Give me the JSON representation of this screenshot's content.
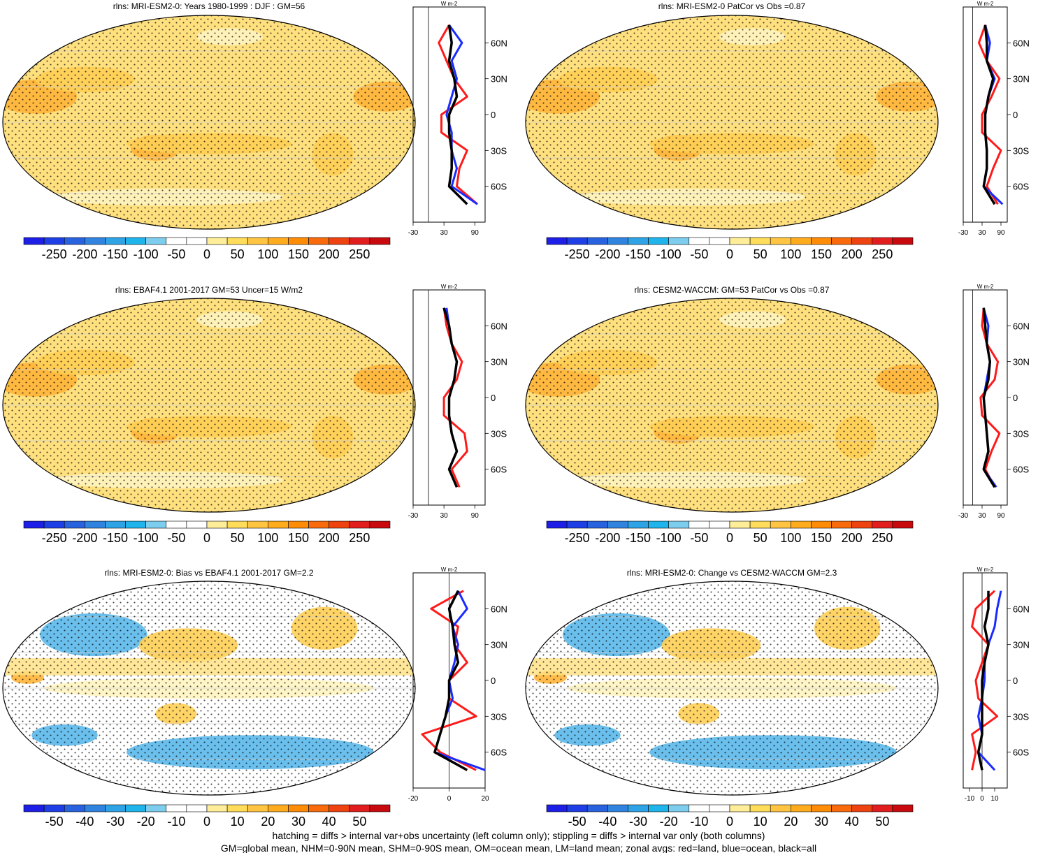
{
  "colors": {
    "full": [
      "#1d1ee6",
      "#1f3fe6",
      "#2862df",
      "#3084e0",
      "#2ea4e6",
      "#1fb4ec",
      "#7dcdee",
      "#ffffff",
      "#ffffff",
      "#ffee99",
      "#ffdc5a",
      "#ffc542",
      "#ffab1e",
      "#ff8c06",
      "#f86a0c",
      "#ee4210",
      "#e21d1d",
      "#c8090e"
    ],
    "ocean": "#ffe07f",
    "land": "#ffcf55",
    "warm": "#ffb53a",
    "cool": "#5ab8ea",
    "pale": "#fff4c0",
    "line_land": "#ff1a1a",
    "line_ocean": "#1a2bff",
    "line_all": "#000000"
  },
  "panels": [
    {
      "title": "rlns: MRI-ESM2-0: Years 1980-1999 : DJF : GM=56",
      "colorbar_labels": [
        "-250",
        "-200",
        "-150",
        "-100",
        "-50",
        "0",
        "50",
        "100",
        "150",
        "200",
        "250"
      ],
      "zonal_xticks": [
        "-30",
        "30",
        "90"
      ],
      "zonal_unit": "W m-2",
      "kind": "abs"
    },
    {
      "title": "rlns: MRI-ESM2-0 PatCor vs Obs =0.87",
      "colorbar_labels": [
        "-250",
        "-200",
        "-150",
        "-100",
        "-50",
        "0",
        "50",
        "100",
        "150",
        "200",
        "250"
      ],
      "zonal_xticks": [
        "-30",
        "30",
        "90"
      ],
      "zonal_unit": "W m-2",
      "kind": "abs"
    },
    {
      "title": "rlns: EBAF4.1 2001-2017 GM=53 Uncer=15 W/m2",
      "colorbar_labels": [
        "-250",
        "-200",
        "-150",
        "-100",
        "-50",
        "0",
        "50",
        "100",
        "150",
        "200",
        "250"
      ],
      "zonal_xticks": [
        "-30",
        "30",
        "90"
      ],
      "zonal_unit": "W m-2",
      "kind": "abs"
    },
    {
      "title": "rlns: CESM2-WACCM: GM=53 PatCor vs Obs =0.87",
      "colorbar_labels": [
        "-250",
        "-200",
        "-150",
        "-100",
        "-50",
        "0",
        "50",
        "100",
        "150",
        "200",
        "250"
      ],
      "zonal_xticks": [
        "-30",
        "30",
        "90"
      ],
      "zonal_unit": "W m-2",
      "kind": "abs"
    },
    {
      "title": "rlns: MRI-ESM2-0: Bias vs EBAF4.1 2001-2017 GM=2.2",
      "colorbar_labels": [
        "-50",
        "-40",
        "-30",
        "-20",
        "-10",
        "0",
        "10",
        "20",
        "30",
        "40",
        "50"
      ],
      "zonal_xticks": [
        "-20",
        "0",
        "20"
      ],
      "zonal_unit": "W m-2",
      "kind": "diff"
    },
    {
      "title": "rlns: MRI-ESM2-0: Change vs CESM2-WACCM GM=2.3",
      "colorbar_labels": [
        "-50",
        "-40",
        "-30",
        "-20",
        "-10",
        "0",
        "10",
        "20",
        "30",
        "40",
        "50"
      ],
      "zonal_xticks": [
        "-10",
        "0",
        "10"
      ],
      "zonal_unit": "W m-2",
      "kind": "diff"
    }
  ],
  "lat_labels": [
    "60N",
    "30N",
    "0",
    "30S",
    "60S"
  ],
  "footer": {
    "line1": "hatching = diffs > internal var+obs uncertainty (left column only); stippling = diffs > internal var only (both columns)",
    "line2": "GM=global mean, NHM=0-90N mean, SHM=0-90S mean, OM=ocean mean, LM=land mean; zonal avgs: red=land, blue=ocean, black=all"
  },
  "chart_data": [
    {
      "type": "heatmap",
      "title": "rlns: MRI-ESM2-0: Years 1980-1999 : DJF : GM=56",
      "units": "W m-2",
      "range": [
        -250,
        250
      ],
      "zonal": {
        "lat": [
          75,
          60,
          45,
          30,
          15,
          0,
          -15,
          -30,
          -45,
          -60,
          -75
        ],
        "land": [
          40,
          20,
          35,
          50,
          75,
          25,
          25,
          75,
          60,
          55,
          95
        ],
        "ocean": [
          40,
          65,
          45,
          55,
          45,
          35,
          45,
          45,
          55,
          45,
          95
        ],
        "all": [
          40,
          45,
          40,
          50,
          55,
          40,
          40,
          45,
          45,
          40,
          75
        ]
      }
    },
    {
      "type": "heatmap",
      "title": "rlns: MRI-ESM2-0 PatCor vs Obs =0.87",
      "units": "W m-2",
      "range": [
        -250,
        250
      ],
      "zonal": {
        "lat": [
          75,
          60,
          45,
          30,
          15,
          0,
          -15,
          -30,
          -45,
          -60,
          -75
        ],
        "land": [
          40,
          20,
          45,
          85,
          60,
          30,
          30,
          90,
          65,
          45,
          80
        ],
        "ocean": [
          40,
          55,
          45,
          70,
          50,
          40,
          40,
          45,
          45,
          35,
          95
        ],
        "all": [
          40,
          45,
          45,
          65,
          50,
          40,
          40,
          45,
          45,
          35,
          70
        ]
      }
    },
    {
      "type": "heatmap",
      "title": "rlns: EBAF4.1 2001-2017 GM=53 Uncer=15 W/m2",
      "units": "W m-2",
      "range": [
        -250,
        250
      ],
      "zonal": {
        "lat": [
          75,
          60,
          45,
          30,
          15,
          0,
          -15,
          -30,
          -45,
          -60,
          -75
        ],
        "land": [
          30,
          35,
          45,
          65,
          55,
          30,
          30,
          70,
          75,
          45,
          60
        ],
        "ocean": [
          35,
          40,
          45,
          55,
          50,
          40,
          40,
          45,
          55,
          40,
          55
        ],
        "all": [
          30,
          40,
          45,
          55,
          50,
          40,
          40,
          45,
          55,
          40,
          55
        ]
      }
    },
    {
      "type": "heatmap",
      "title": "rlns: CESM2-WACCM: GM=53 PatCor vs Obs =0.87",
      "units": "W m-2",
      "range": [
        -250,
        250
      ],
      "zonal": {
        "lat": [
          75,
          60,
          45,
          30,
          15,
          0,
          -15,
          -30,
          -45,
          -60,
          -75
        ],
        "land": [
          35,
          30,
          45,
          80,
          70,
          25,
          30,
          85,
          60,
          40,
          70
        ],
        "ocean": [
          35,
          50,
          45,
          55,
          45,
          35,
          40,
          45,
          50,
          35,
          75
        ],
        "all": [
          35,
          40,
          45,
          55,
          50,
          35,
          40,
          45,
          50,
          35,
          70
        ]
      }
    },
    {
      "type": "heatmap",
      "title": "rlns: MRI-ESM2-0: Bias vs EBAF4.1 2001-2017 GM=2.2",
      "units": "W m-2",
      "range": [
        -50,
        50
      ],
      "zonal": {
        "lat": [
          75,
          60,
          45,
          30,
          15,
          0,
          -15,
          -30,
          -45,
          -60,
          -75
        ],
        "land": [
          8,
          -10,
          5,
          3,
          10,
          0,
          0,
          15,
          -15,
          -5,
          15
        ],
        "ocean": [
          5,
          10,
          2,
          5,
          3,
          0,
          2,
          -2,
          -5,
          -8,
          20
        ],
        "all": [
          5,
          0,
          2,
          3,
          5,
          0,
          0,
          -2,
          -5,
          -8,
          10
        ]
      }
    },
    {
      "type": "heatmap",
      "title": "rlns: MRI-ESM2-0: Change vs CESM2-WACCM GM=2.3",
      "units": "W m-2",
      "range": [
        -50,
        50
      ],
      "zonal": {
        "lat": [
          75,
          60,
          45,
          30,
          15,
          0,
          -15,
          -30,
          -45,
          -60,
          -75
        ],
        "land": [
          10,
          -5,
          -8,
          5,
          0,
          -5,
          -3,
          12,
          -8,
          -5,
          -8
        ],
        "ocean": [
          15,
          12,
          10,
          5,
          2,
          2,
          0,
          -3,
          0,
          -3,
          10
        ],
        "all": [
          5,
          5,
          2,
          5,
          2,
          0,
          0,
          0,
          0,
          -3,
          0
        ]
      }
    }
  ]
}
